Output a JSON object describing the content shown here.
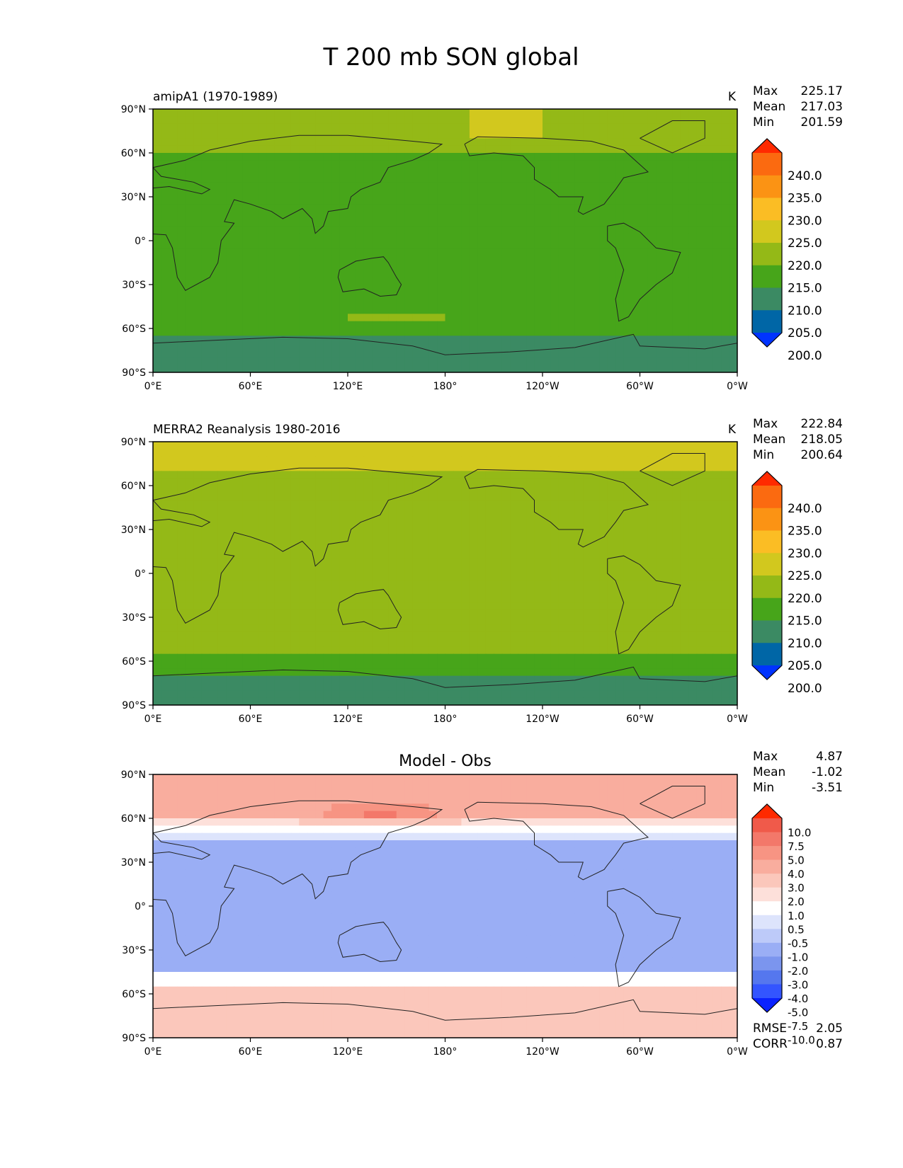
{
  "title": "T 200 mb SON global",
  "lat_ticks": [
    "90°N",
    "60°N",
    "30°N",
    "0°",
    "30°S",
    "60°S",
    "90°S"
  ],
  "lon_ticks": [
    "0°E",
    "60°E",
    "120°E",
    "180°",
    "120°W",
    "60°W",
    "0°W"
  ],
  "colors": {
    "abs": [
      "#0033ff",
      "#0066a6",
      "#3b8a63",
      "#47a51a",
      "#94b917",
      "#d2c81e",
      "#fbbd24",
      "#fb9314",
      "#fb6a10",
      "#ff2a00"
    ],
    "diff": [
      "#0a22ff",
      "#3355ff",
      "#5577ee",
      "#7b95ee",
      "#9aaef5",
      "#bdcaf9",
      "#dde4fc",
      "#ffffff",
      "#fde0da",
      "#fbc7bb",
      "#f9ad9e",
      "#f79483",
      "#f3786a",
      "#f05a4a",
      "#ff2a00"
    ]
  },
  "panels": [
    {
      "title": "amipA1 (1970-1989)",
      "units": "K",
      "stats": {
        "Max": "225.17",
        "Mean": "217.03",
        "Min": "201.59"
      },
      "colorbar": {
        "kind": "abs",
        "labels": [
          "240.0",
          "235.0",
          "230.0",
          "225.0",
          "220.0",
          "215.0",
          "210.0",
          "205.0",
          "200.0"
        ]
      },
      "field": "model"
    },
    {
      "title": "MERRA2 Reanalysis 1980-2016",
      "units": "K",
      "stats": {
        "Max": "222.84",
        "Mean": "218.05",
        "Min": "200.64"
      },
      "colorbar": {
        "kind": "abs",
        "labels": [
          "240.0",
          "235.0",
          "230.0",
          "225.0",
          "220.0",
          "215.0",
          "210.0",
          "205.0",
          "200.0"
        ]
      },
      "field": "obs"
    },
    {
      "title": "Model - Obs",
      "units": "",
      "stats": {
        "Max": "4.87",
        "Mean": "-1.02",
        "Min": "-3.51"
      },
      "colorbar": {
        "kind": "diff",
        "labels": [
          "10.0",
          "7.5",
          "5.0",
          "4.0",
          "3.0",
          "2.0",
          "1.0",
          "0.5",
          "-0.5",
          "-1.0",
          "-2.0",
          "-3.0",
          "-4.0",
          "-5.0",
          "-7.5",
          "-10.0"
        ]
      },
      "extra_stats": {
        "RMSE": "2.05",
        "CORR": "0.87"
      },
      "field": "diff"
    }
  ]
}
